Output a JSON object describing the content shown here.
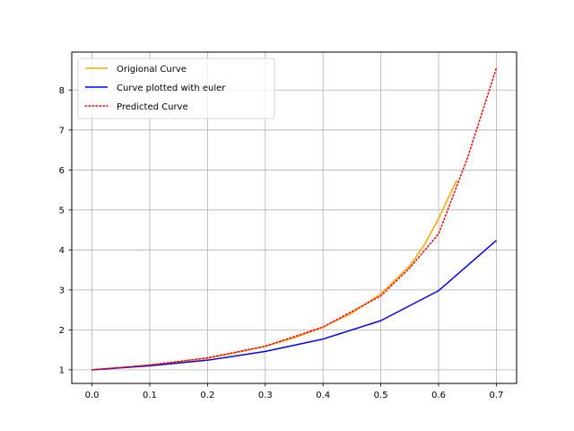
{
  "chart_data": {
    "type": "line",
    "title": "",
    "xlabel": "",
    "ylabel": "",
    "xlim": [
      -0.035,
      0.735
    ],
    "ylim": [
      0.66,
      8.95
    ],
    "grid": true,
    "legend": "top-left",
    "xticks": [
      "0.0",
      "0.1",
      "0.2",
      "0.3",
      "0.4",
      "0.5",
      "0.6",
      "0.7"
    ],
    "yticks": [
      "1",
      "2",
      "3",
      "4",
      "5",
      "6",
      "7",
      "8"
    ],
    "series": [
      {
        "name": "Origional Curve",
        "color": "#ffa500",
        "style": "solid",
        "x": [
          0,
          0.05,
          0.1,
          0.15,
          0.2,
          0.25,
          0.3,
          0.35,
          0.4,
          0.45,
          0.5,
          0.55,
          0.575,
          0.6,
          0.62,
          0.632
        ],
        "y": [
          1.0,
          1.05,
          1.12,
          1.2,
          1.29,
          1.43,
          1.59,
          1.8,
          2.07,
          2.42,
          2.9,
          3.6,
          4.12,
          4.78,
          5.4,
          5.75
        ]
      },
      {
        "name": "Curve plotted with euler",
        "color": "#0000ff",
        "style": "solid",
        "x": [
          0,
          0.1,
          0.2,
          0.3,
          0.4,
          0.5,
          0.6,
          0.7
        ],
        "y": [
          1.0,
          1.1,
          1.24,
          1.46,
          1.77,
          2.23,
          2.98,
          4.24
        ]
      },
      {
        "name": "Predicted Curve",
        "color": "#ff0000",
        "style": "dotted",
        "x": [
          0,
          0.1,
          0.2,
          0.3,
          0.4,
          0.5,
          0.55,
          0.6,
          0.65,
          0.7
        ],
        "y": [
          1.0,
          1.12,
          1.3,
          1.59,
          2.07,
          2.85,
          3.55,
          4.4,
          6.3,
          8.55
        ]
      }
    ]
  }
}
